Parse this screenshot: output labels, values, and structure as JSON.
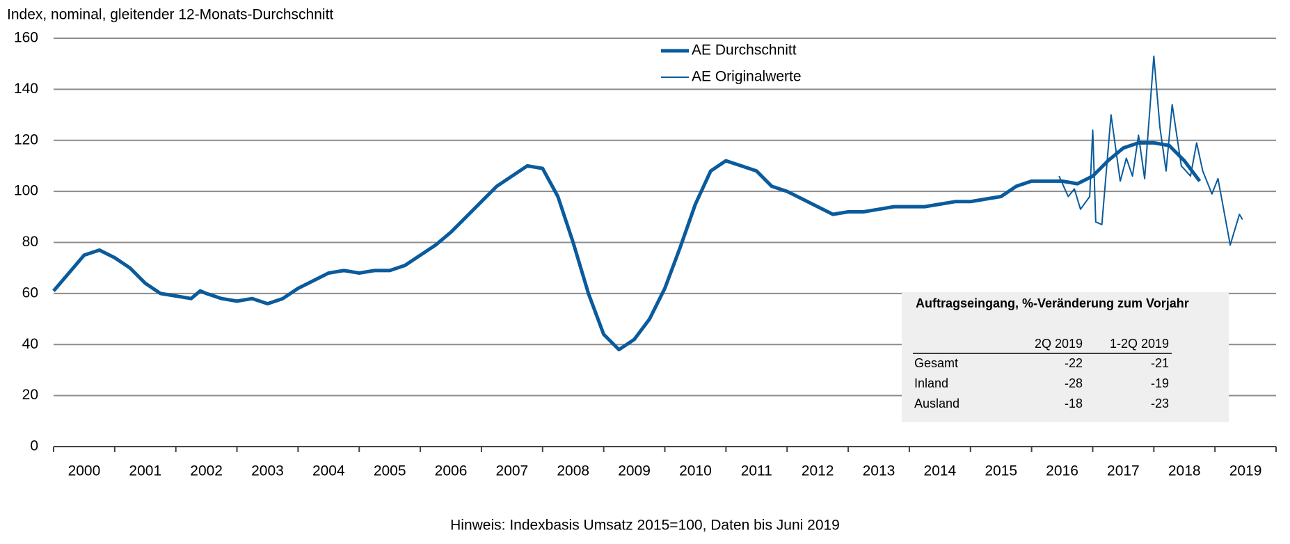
{
  "chart_data": {
    "type": "line",
    "title": "Index, nominal, gleitender 12-Monats-Durchschnitt",
    "footnote": "Hinweis: Indexbasis Umsatz 2015=100, Daten bis Juni 2019",
    "xlim": [
      2000,
      2020
    ],
    "xticks": [
      {
        "value": 2000.5,
        "label": "2000"
      },
      {
        "value": 2001.5,
        "label": "2001"
      },
      {
        "value": 2002.5,
        "label": "2002"
      },
      {
        "value": 2003.5,
        "label": "2003"
      },
      {
        "value": 2004.5,
        "label": "2004"
      },
      {
        "value": 2005.5,
        "label": "2005"
      },
      {
        "value": 2006.5,
        "label": "2006"
      },
      {
        "value": 2007.5,
        "label": "2007"
      },
      {
        "value": 2008.5,
        "label": "2008"
      },
      {
        "value": 2009.5,
        "label": "2009"
      },
      {
        "value": 2010.5,
        "label": "2010"
      },
      {
        "value": 2011.5,
        "label": "2011"
      },
      {
        "value": 2012.5,
        "label": "2012"
      },
      {
        "value": 2013.5,
        "label": "2013"
      },
      {
        "value": 2014.5,
        "label": "2014"
      },
      {
        "value": 2015.5,
        "label": "2015"
      },
      {
        "value": 2016.5,
        "label": "2016"
      },
      {
        "value": 2017.5,
        "label": "2017"
      },
      {
        "value": 2018.5,
        "label": "2018"
      },
      {
        "value": 2019.5,
        "label": "2019"
      }
    ],
    "ylim": [
      0,
      160
    ],
    "yticks": [
      0,
      20,
      40,
      60,
      80,
      100,
      120,
      140,
      160
    ],
    "grid": true,
    "series": [
      {
        "name": "AE Durchschnitt",
        "color": "#0a5b9c",
        "width": 5,
        "x": [
          2000,
          2000.25,
          2000.5,
          2000.75,
          2001,
          2001.25,
          2001.5,
          2001.75,
          2002,
          2002.25,
          2002.4,
          2002.5,
          2002.75,
          2003,
          2003.25,
          2003.5,
          2003.75,
          2004,
          2004.25,
          2004.5,
          2004.75,
          2005,
          2005.25,
          2005.5,
          2005.75,
          2006,
          2006.25,
          2006.5,
          2006.75,
          2007,
          2007.25,
          2007.5,
          2007.75,
          2008,
          2008.25,
          2008.5,
          2008.75,
          2009,
          2009.25,
          2009.5,
          2009.75,
          2010,
          2010.25,
          2010.5,
          2010.75,
          2011,
          2011.25,
          2011.5,
          2011.75,
          2012,
          2012.25,
          2012.5,
          2012.75,
          2013,
          2013.25,
          2013.5,
          2013.75,
          2014,
          2014.25,
          2014.5,
          2014.75,
          2015,
          2015.25,
          2015.5,
          2015.75,
          2016,
          2016.25,
          2016.5,
          2016.75,
          2017,
          2017.25,
          2017.5,
          2017.75,
          2018,
          2018.25,
          2018.5,
          2018.75
        ],
        "values": [
          61,
          68,
          75,
          77,
          74,
          70,
          64,
          60,
          59,
          58,
          61,
          60,
          58,
          57,
          58,
          56,
          58,
          62,
          65,
          68,
          69,
          68,
          69,
          69,
          71,
          75,
          79,
          84,
          90,
          96,
          102,
          106,
          110,
          109,
          98,
          80,
          60,
          44,
          38,
          42,
          50,
          62,
          78,
          95,
          108,
          112,
          110,
          108,
          102,
          100,
          97,
          94,
          91,
          92,
          92,
          93,
          94,
          94,
          94,
          95,
          96,
          96,
          97,
          98,
          102,
          104,
          104,
          104,
          103,
          106,
          112,
          117,
          119,
          119,
          118,
          112,
          104
        ]
      },
      {
        "name": "AE Originalwerte",
        "color": "#0a5b9c",
        "width": 2,
        "x": [
          2016.45,
          2016.6,
          2016.7,
          2016.8,
          2016.95,
          2017,
          2017.05,
          2017.15,
          2017.3,
          2017.45,
          2017.55,
          2017.65,
          2017.75,
          2017.85,
          2018,
          2018.1,
          2018.2,
          2018.3,
          2018.45,
          2018.6,
          2018.7,
          2018.8,
          2018.95,
          2019.05,
          2019.25,
          2019.4,
          2019.45
        ],
        "values": [
          106,
          98,
          101,
          93,
          98,
          124,
          88,
          87,
          130,
          104,
          113,
          106,
          122,
          105,
          153,
          125,
          108,
          134,
          110,
          106,
          119,
          108,
          99,
          105,
          79,
          91,
          89
        ]
      }
    ],
    "table": {
      "title": "Auftragseingang, %-Veränderung zum Vorjahr",
      "columns": [
        "2Q 2019",
        "1-2Q 2019"
      ],
      "rows": [
        [
          "Gesamt",
          -22,
          -21
        ],
        [
          "Inland",
          -28,
          -19
        ],
        [
          "Ausland",
          -18,
          -23
        ]
      ]
    }
  }
}
